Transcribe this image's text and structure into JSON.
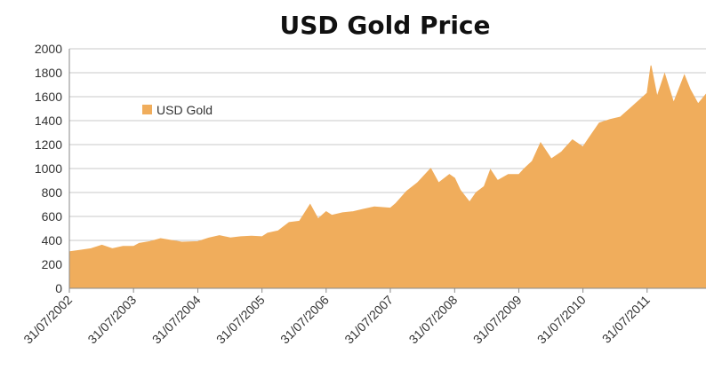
{
  "chart_data": {
    "type": "area",
    "title": "USD Gold Price",
    "xlabel": "",
    "ylabel": "",
    "ylim": [
      0,
      2000
    ],
    "yticks": [
      0,
      200,
      400,
      600,
      800,
      1000,
      1200,
      1400,
      1600,
      1800,
      2000
    ],
    "xticks": [
      "31/07/2002",
      "31/07/2003",
      "31/07/2004",
      "31/07/2005",
      "31/07/2006",
      "31/07/2007",
      "31/07/2008",
      "31/07/2009",
      "31/07/2010",
      "31/07/2011"
    ],
    "xlim": [
      "2002-07-31",
      "2012-06-30"
    ],
    "grid": true,
    "legend": "upper-left",
    "color": "#F0AD5C",
    "series": [
      {
        "name": "USD Gold",
        "points": [
          [
            "2002-07-31",
            305
          ],
          [
            "2002-10-01",
            318
          ],
          [
            "2002-12-01",
            330
          ],
          [
            "2003-02-01",
            360
          ],
          [
            "2003-04-01",
            330
          ],
          [
            "2003-06-01",
            350
          ],
          [
            "2003-07-31",
            350
          ],
          [
            "2003-09-01",
            375
          ],
          [
            "2003-11-01",
            390
          ],
          [
            "2004-01-01",
            415
          ],
          [
            "2004-03-01",
            400
          ],
          [
            "2004-05-01",
            385
          ],
          [
            "2004-07-31",
            390
          ],
          [
            "2004-10-01",
            420
          ],
          [
            "2004-12-01",
            440
          ],
          [
            "2005-02-01",
            420
          ],
          [
            "2005-04-01",
            430
          ],
          [
            "2005-06-01",
            435
          ],
          [
            "2005-07-31",
            430
          ],
          [
            "2005-09-01",
            460
          ],
          [
            "2005-11-01",
            480
          ],
          [
            "2006-01-01",
            550
          ],
          [
            "2006-03-01",
            560
          ],
          [
            "2006-05-01",
            700
          ],
          [
            "2006-06-15",
            580
          ],
          [
            "2006-07-31",
            640
          ],
          [
            "2006-09-01",
            610
          ],
          [
            "2006-11-01",
            630
          ],
          [
            "2007-01-01",
            640
          ],
          [
            "2007-03-01",
            660
          ],
          [
            "2007-05-01",
            680
          ],
          [
            "2007-07-31",
            670
          ],
          [
            "2007-09-01",
            710
          ],
          [
            "2007-11-01",
            810
          ],
          [
            "2008-01-01",
            880
          ],
          [
            "2008-03-17",
            1000
          ],
          [
            "2008-05-01",
            880
          ],
          [
            "2008-07-01",
            950
          ],
          [
            "2008-07-31",
            920
          ],
          [
            "2008-09-01",
            820
          ],
          [
            "2008-10-24",
            720
          ],
          [
            "2008-12-01",
            800
          ],
          [
            "2009-01-15",
            850
          ],
          [
            "2009-02-20",
            990
          ],
          [
            "2009-04-01",
            900
          ],
          [
            "2009-06-01",
            950
          ],
          [
            "2009-07-31",
            950
          ],
          [
            "2009-09-01",
            1000
          ],
          [
            "2009-10-15",
            1060
          ],
          [
            "2009-12-02",
            1215
          ],
          [
            "2010-02-01",
            1080
          ],
          [
            "2010-04-01",
            1140
          ],
          [
            "2010-06-01",
            1240
          ],
          [
            "2010-07-31",
            1180
          ],
          [
            "2010-09-01",
            1250
          ],
          [
            "2010-11-01",
            1380
          ],
          [
            "2011-01-01",
            1410
          ],
          [
            "2011-03-01",
            1430
          ],
          [
            "2011-05-01",
            1510
          ],
          [
            "2011-07-31",
            1630
          ],
          [
            "2011-08-22",
            1860
          ],
          [
            "2011-09-26",
            1600
          ],
          [
            "2011-11-08",
            1790
          ],
          [
            "2011-12-29",
            1550
          ],
          [
            "2012-02-28",
            1780
          ],
          [
            "2012-04-01",
            1660
          ],
          [
            "2012-05-16",
            1540
          ],
          [
            "2012-06-30",
            1620
          ]
        ]
      }
    ]
  }
}
